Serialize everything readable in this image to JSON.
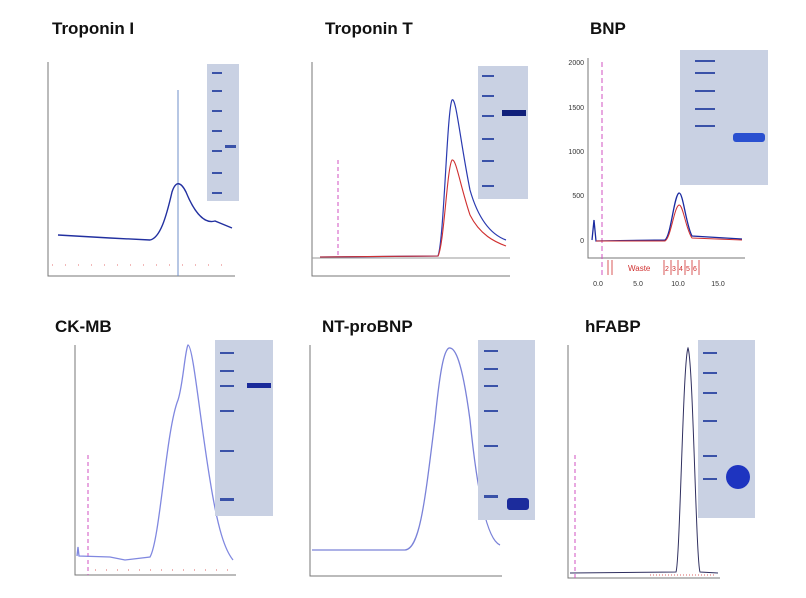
{
  "panels": [
    {
      "title": "Troponin I"
    },
    {
      "title": "Troponin T"
    },
    {
      "title": "BNP",
      "yticks": [
        "0",
        "500",
        "1000",
        "1500",
        "2000"
      ],
      "xticks": [
        "0.0",
        "5.0",
        "10.0",
        "15.0"
      ],
      "fraction_label": "Waste",
      "fractions": [
        "2",
        "3",
        "4",
        "5",
        "6"
      ]
    },
    {
      "title": "CK-MB"
    },
    {
      "title": "NT-proBNP"
    },
    {
      "title": "hFABP"
    }
  ]
}
